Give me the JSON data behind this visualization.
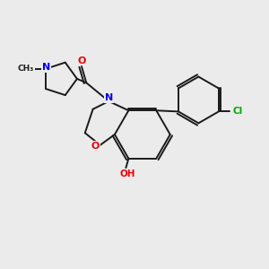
{
  "background_color": "#ebebeb",
  "bond_color": "#1a1a1a",
  "atom_colors": {
    "N": "#0000ee",
    "O": "#ee0000",
    "Cl": "#00aa00",
    "C": "#1a1a1a"
  }
}
